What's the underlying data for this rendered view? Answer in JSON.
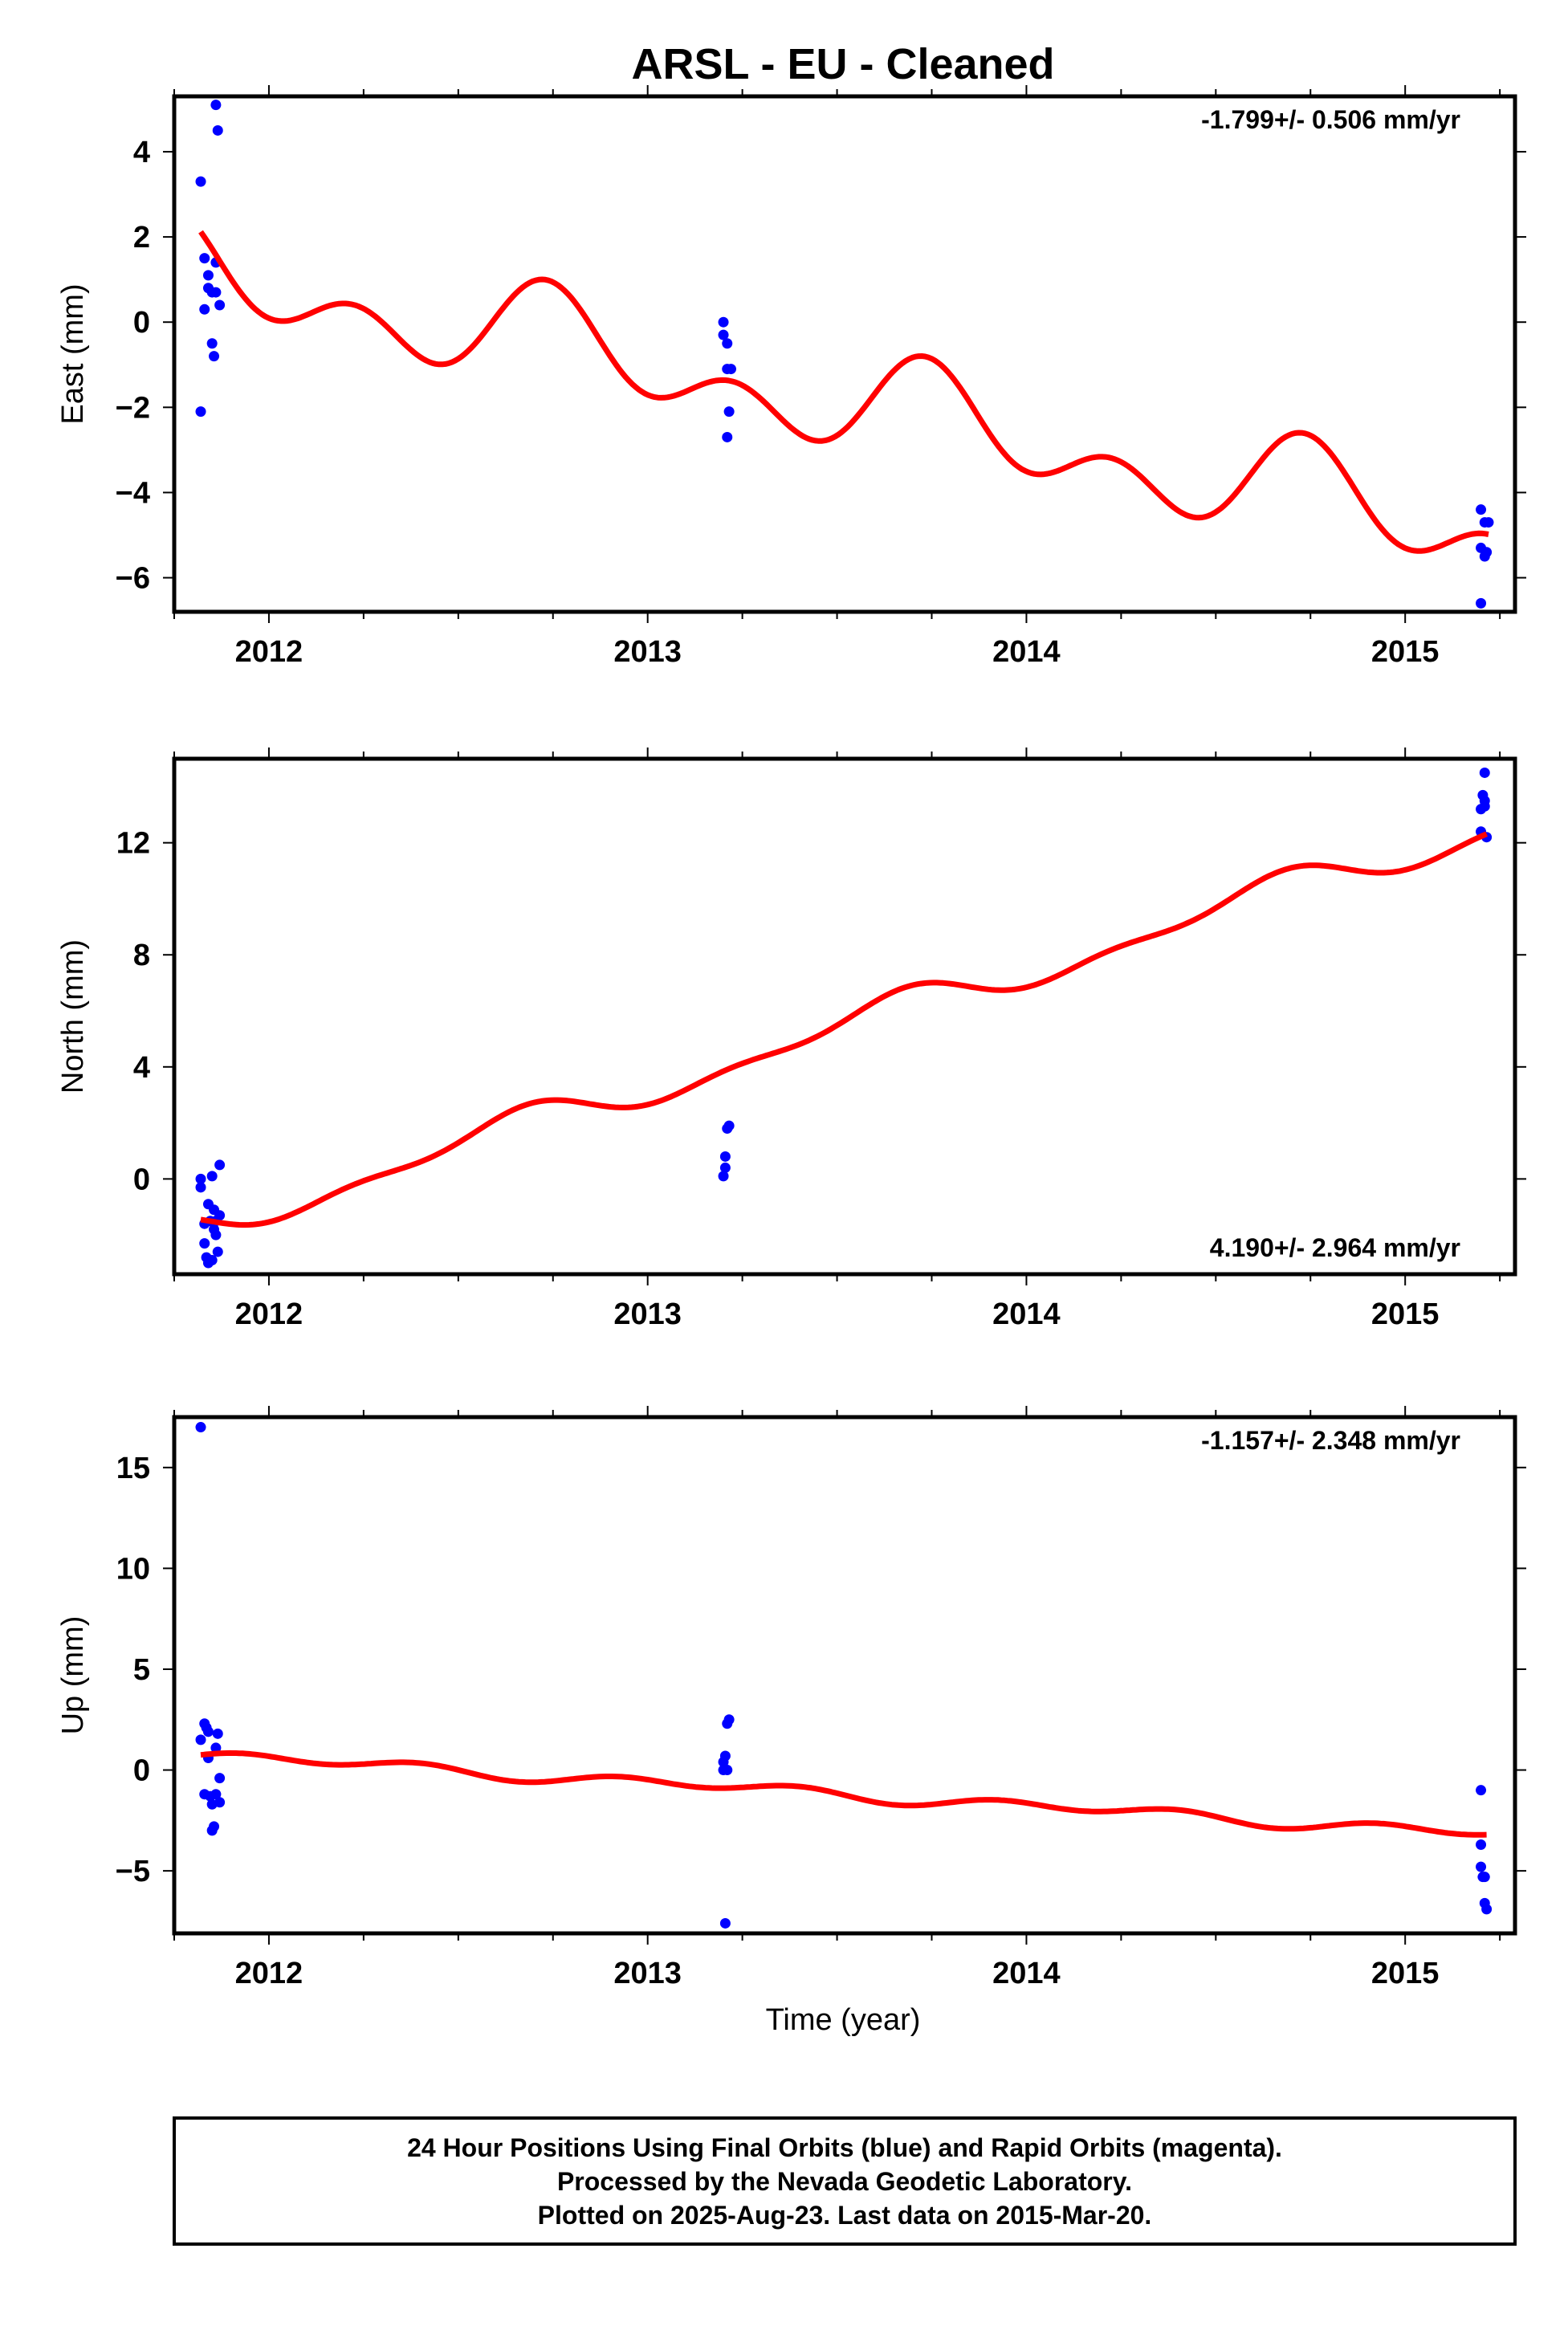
{
  "title": "ARSL  - EU - Cleaned",
  "colors": {
    "final_orbits": "#0000ff",
    "model": "#ff0000",
    "frame": "#000000"
  },
  "xlabel": "Time (year)",
  "footer": {
    "line1": "24 Hour Positions Using Final Orbits (blue) and Rapid Orbits (magenta).",
    "line2": "Processed by the Nevada Geodetic Laboratory.",
    "line3": "Plotted on 2025-Aug-23. Last data on 2015-Mar-20."
  },
  "chart_data": [
    {
      "type": "scatter",
      "ylabel": "East (mm)",
      "rate_text": "-1.799+/- 0.506 mm/yr",
      "rate_position": "top-right",
      "xlim": [
        2011.75,
        2015.29
      ],
      "ylim": [
        -6.8,
        5.3
      ],
      "x_ticks": [
        2012,
        2013,
        2014,
        2015
      ],
      "y_ticks": [
        -6,
        -4,
        -2,
        0,
        2,
        4
      ],
      "y_tick_labels": [
        "−6",
        "−4",
        "−2",
        "0",
        "2",
        "4"
      ],
      "points": [
        [
          2011.82,
          3.3
        ],
        [
          2011.82,
          -2.1
        ],
        [
          2011.83,
          1.5
        ],
        [
          2011.83,
          0.3
        ],
        [
          2011.84,
          1.1
        ],
        [
          2011.84,
          0.8
        ],
        [
          2011.85,
          0.7
        ],
        [
          2011.85,
          -0.5
        ],
        [
          2011.855,
          -0.8
        ],
        [
          2011.86,
          0.7
        ],
        [
          2011.86,
          1.4
        ],
        [
          2011.86,
          5.1
        ],
        [
          2011.865,
          4.5
        ],
        [
          2011.87,
          0.4
        ],
        [
          2013.2,
          0.0
        ],
        [
          2013.2,
          -0.3
        ],
        [
          2013.21,
          -0.5
        ],
        [
          2013.21,
          -1.1
        ],
        [
          2013.22,
          -1.1
        ],
        [
          2013.215,
          -2.1
        ],
        [
          2013.21,
          -2.7
        ],
        [
          2015.2,
          -4.4
        ],
        [
          2015.2,
          -5.3
        ],
        [
          2015.21,
          -4.7
        ],
        [
          2015.21,
          -5.5
        ],
        [
          2015.22,
          -4.7
        ],
        [
          2015.215,
          -5.4
        ],
        [
          2015.2,
          -6.6
        ]
      ],
      "model": {
        "t0": 2011.82,
        "intercept": 1.12,
        "slope": -1.799,
        "annual_cos": 0.7,
        "annual_sin": -0.3,
        "semiannual_cos": 0.3,
        "semiannual_sin": -0.7
      }
    },
    {
      "type": "scatter",
      "ylabel": "North (mm)",
      "rate_text": "4.190+/- 2.964 mm/yr",
      "rate_position": "bottom-right",
      "xlim": [
        2011.75,
        2015.29
      ],
      "ylim": [
        -3.4,
        15.0
      ],
      "x_ticks": [
        2012,
        2013,
        2014,
        2015
      ],
      "y_ticks": [
        0,
        4,
        8,
        12
      ],
      "y_tick_labels": [
        "0",
        "4",
        "8",
        "12"
      ],
      "points": [
        [
          2011.82,
          0.0
        ],
        [
          2011.82,
          -0.3
        ],
        [
          2011.83,
          -1.6
        ],
        [
          2011.83,
          -2.3
        ],
        [
          2011.835,
          -2.8
        ],
        [
          2011.84,
          -3.0
        ],
        [
          2011.84,
          -0.9
        ],
        [
          2011.845,
          -1.5
        ],
        [
          2011.85,
          -2.9
        ],
        [
          2011.85,
          0.1
        ],
        [
          2011.855,
          -1.1
        ],
        [
          2011.86,
          -1.5
        ],
        [
          2011.86,
          -2.0
        ],
        [
          2011.865,
          -2.6
        ],
        [
          2011.87,
          -1.3
        ],
        [
          2011.87,
          0.5
        ],
        [
          2011.855,
          -1.8
        ],
        [
          2013.2,
          0.1
        ],
        [
          2013.205,
          0.4
        ],
        [
          2013.205,
          0.8
        ],
        [
          2013.21,
          1.8
        ],
        [
          2013.215,
          1.9
        ],
        [
          2015.2,
          12.4
        ],
        [
          2015.2,
          13.2
        ],
        [
          2015.205,
          13.7
        ],
        [
          2015.21,
          13.5
        ],
        [
          2015.21,
          14.5
        ],
        [
          2015.215,
          12.2
        ],
        [
          2015.21,
          13.3
        ]
      ],
      "model": {
        "t0": 2011.82,
        "intercept": -1.7,
        "slope": 4.19,
        "annual_cos": 0.2,
        "annual_sin": -0.5,
        "semiannual_cos": 0.05,
        "semiannual_sin": -0.25
      }
    },
    {
      "type": "scatter",
      "ylabel": "Up (mm)",
      "rate_text": "-1.157+/- 2.348 mm/yr",
      "rate_position": "top-right",
      "xlim": [
        2011.75,
        2015.29
      ],
      "ylim": [
        -8.1,
        17.5
      ],
      "x_ticks": [
        2012,
        2013,
        2014,
        2015
      ],
      "y_ticks": [
        -5,
        0,
        5,
        10,
        15
      ],
      "y_tick_labels": [
        "−5",
        "0",
        "5",
        "10",
        "15"
      ],
      "points": [
        [
          2011.82,
          17.0
        ],
        [
          2011.82,
          1.5
        ],
        [
          2011.83,
          2.3
        ],
        [
          2011.83,
          -1.2
        ],
        [
          2011.835,
          2.1
        ],
        [
          2011.84,
          1.9
        ],
        [
          2011.84,
          0.6
        ],
        [
          2011.845,
          -1.3
        ],
        [
          2011.85,
          -3.0
        ],
        [
          2011.85,
          -1.7
        ],
        [
          2011.855,
          -2.8
        ],
        [
          2011.86,
          -1.2
        ],
        [
          2011.86,
          1.1
        ],
        [
          2011.865,
          1.8
        ],
        [
          2011.87,
          -0.4
        ],
        [
          2011.87,
          -1.6
        ],
        [
          2013.2,
          0.0
        ],
        [
          2013.2,
          0.4
        ],
        [
          2013.205,
          0.7
        ],
        [
          2013.21,
          0.0
        ],
        [
          2013.21,
          2.3
        ],
        [
          2013.215,
          2.5
        ],
        [
          2013.205,
          -7.6
        ],
        [
          2015.2,
          -1.0
        ],
        [
          2015.2,
          -4.8
        ],
        [
          2015.205,
          -5.3
        ],
        [
          2015.21,
          -5.3
        ],
        [
          2015.21,
          -6.6
        ],
        [
          2015.215,
          -6.9
        ],
        [
          2015.2,
          -3.7
        ]
      ],
      "model": {
        "t0": 2011.82,
        "intercept": 0.75,
        "slope": -1.157,
        "annual_cos": -0.1,
        "annual_sin": 0.1,
        "semiannual_cos": 0.1,
        "semiannual_sin": 0.2
      }
    }
  ]
}
